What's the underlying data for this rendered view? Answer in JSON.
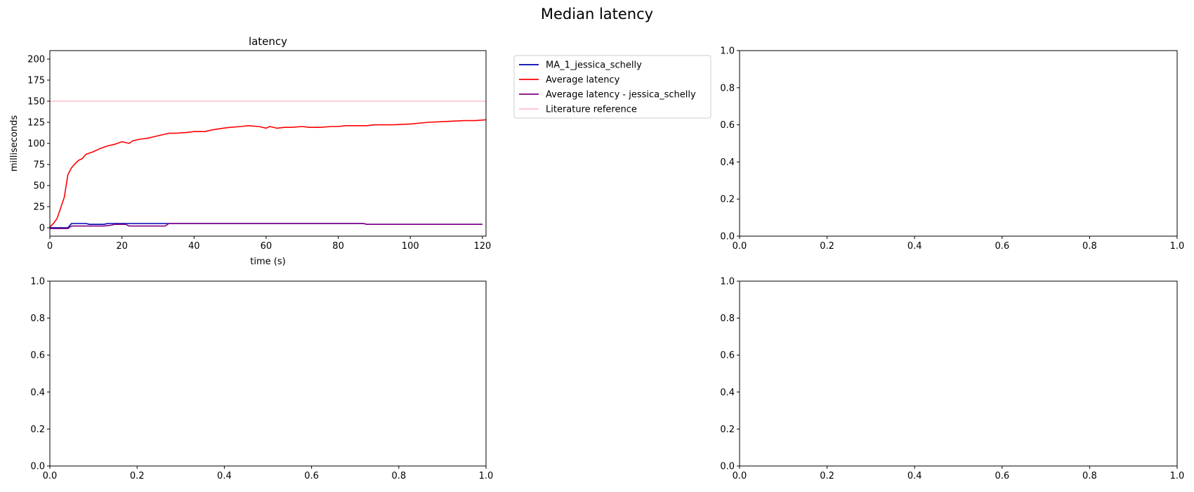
{
  "figure_title": "Median latency",
  "colors": {
    "MA_1_jessica_schelly": "#0000b3",
    "Average latency": "#ff0000",
    "Average latency - jessica_schelly": "#800080",
    "Literature reference": "#ffc0cb"
  },
  "chart_data": [
    {
      "type": "line",
      "title": "latency",
      "xlabel": "time (s)",
      "ylabel": "milliseconds",
      "xlim": [
        0,
        121
      ],
      "ylim": [
        -10,
        210
      ],
      "xticks": [
        0,
        20,
        40,
        60,
        80,
        100,
        120
      ],
      "yticks": [
        0,
        25,
        50,
        75,
        100,
        125,
        150,
        175,
        200
      ],
      "legend_position": "outside-right",
      "series": [
        {
          "name": "MA_1_jessica_schelly",
          "color": "#0000b3",
          "x": [
            0,
            5,
            6,
            10,
            11,
            15,
            16,
            33,
            34,
            87,
            88,
            120
          ],
          "y": [
            0,
            0,
            5,
            5,
            4,
            4,
            5,
            5,
            5,
            5,
            4,
            4
          ]
        },
        {
          "name": "Average latency",
          "color": "#ff0000",
          "x": [
            0,
            1,
            2,
            4,
            5,
            6,
            7,
            8,
            9,
            10,
            12,
            14,
            16,
            18,
            20,
            22,
            23,
            25,
            27,
            29,
            31,
            33,
            35,
            38,
            40,
            43,
            45,
            48,
            50,
            53,
            55,
            58,
            60,
            61,
            63,
            65,
            67,
            70,
            72,
            75,
            78,
            80,
            82,
            85,
            88,
            90,
            95,
            100,
            105,
            110,
            115,
            118,
            121
          ],
          "y": [
            1,
            5,
            11,
            36,
            63,
            71,
            76,
            80,
            82,
            87,
            90,
            94,
            97,
            99,
            102,
            100,
            103,
            105,
            106,
            108,
            110,
            112,
            112,
            113,
            114,
            114,
            116,
            118,
            119,
            120,
            121,
            120,
            118,
            120,
            118,
            119,
            119,
            120,
            119,
            119,
            120,
            120,
            121,
            121,
            121,
            122,
            122,
            123,
            125,
            126,
            127,
            127,
            128
          ]
        },
        {
          "name": "Average latency - jessica_schelly",
          "color": "#800080",
          "x": [
            0,
            5,
            6,
            15,
            17,
            18,
            21,
            22,
            32,
            33,
            87,
            88,
            120
          ],
          "y": [
            -1,
            -1,
            2,
            2,
            3,
            4,
            4,
            2,
            2,
            5,
            5,
            4,
            4
          ]
        },
        {
          "name": "Literature reference",
          "color": "#ffc0cb",
          "x": [
            0,
            121
          ],
          "y": [
            150,
            150
          ]
        }
      ]
    },
    {
      "type": "line",
      "title": "",
      "xlim": [
        0,
        1
      ],
      "ylim": [
        0,
        1
      ],
      "xticks": [
        0.0,
        0.2,
        0.4,
        0.6,
        0.8,
        1.0
      ],
      "yticks": [
        0.0,
        0.2,
        0.4,
        0.6,
        0.8,
        1.0
      ],
      "series": []
    },
    {
      "type": "line",
      "title": "",
      "xlim": [
        0,
        1
      ],
      "ylim": [
        0,
        1
      ],
      "xticks": [
        0.0,
        0.2,
        0.4,
        0.6,
        0.8,
        1.0
      ],
      "yticks": [
        0.0,
        0.2,
        0.4,
        0.6,
        0.8,
        1.0
      ],
      "series": []
    },
    {
      "type": "line",
      "title": "",
      "xlim": [
        0,
        1
      ],
      "ylim": [
        0,
        1
      ],
      "xticks": [
        0.0,
        0.2,
        0.4,
        0.6,
        0.8,
        1.0
      ],
      "yticks": [
        0.0,
        0.2,
        0.4,
        0.6,
        0.8,
        1.0
      ],
      "series": []
    }
  ]
}
